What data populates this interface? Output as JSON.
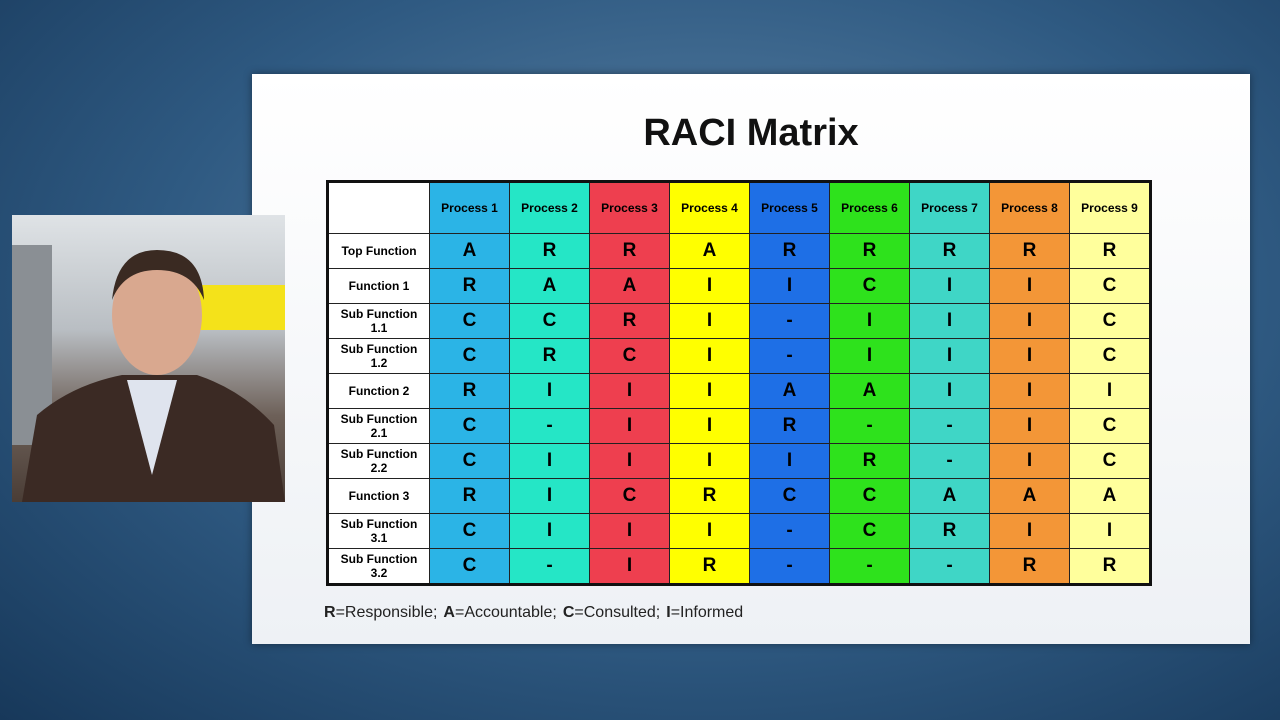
{
  "slide": {
    "title": "RACI Matrix",
    "table": {
      "columns": [
        "Process 1",
        "Process 2",
        "Process 3",
        "Process 4",
        "Process 5",
        "Process 6",
        "Process 7",
        "Process 8",
        "Process 9"
      ],
      "colors": [
        "#2bb4e6",
        "#25e6c6",
        "#ee3f4f",
        "#ffff00",
        "#1e6fe6",
        "#2ee21c",
        "#3fd6c6",
        "#f39637",
        "#ffff9c"
      ],
      "rows": [
        {
          "label": "Top Function",
          "cells": [
            "A",
            "R",
            "R",
            "A",
            "R",
            "R",
            "R",
            "R",
            "R"
          ]
        },
        {
          "label": "Function 1",
          "cells": [
            "R",
            "A",
            "A",
            "I",
            "I",
            "C",
            "I",
            "I",
            "C"
          ]
        },
        {
          "label": "Sub Function 1.1",
          "cells": [
            "C",
            "C",
            "R",
            "I",
            "-",
            "I",
            "I",
            "I",
            "C"
          ]
        },
        {
          "label": "Sub Function 1.2",
          "cells": [
            "C",
            "R",
            "C",
            "I",
            "-",
            "I",
            "I",
            "I",
            "C"
          ]
        },
        {
          "label": "Function 2",
          "cells": [
            "R",
            "I",
            "I",
            "I",
            "A",
            "A",
            "I",
            "I",
            "I"
          ]
        },
        {
          "label": "Sub Function 2.1",
          "cells": [
            "C",
            "-",
            "I",
            "I",
            "R",
            "-",
            "-",
            "I",
            "C"
          ]
        },
        {
          "label": "Sub Function 2.2",
          "cells": [
            "C",
            "I",
            "I",
            "I",
            "I",
            "R",
            "-",
            "I",
            "C"
          ]
        },
        {
          "label": "Function 3",
          "cells": [
            "R",
            "I",
            "C",
            "R",
            "C",
            "C",
            "A",
            "A",
            "A"
          ]
        },
        {
          "label": "Sub Function 3.1",
          "cells": [
            "C",
            "I",
            "I",
            "I",
            "-",
            "C",
            "R",
            "I",
            "I"
          ]
        },
        {
          "label": "Sub Function 3.2",
          "cells": [
            "C",
            "-",
            "I",
            "R",
            "-",
            "-",
            "-",
            "R",
            "R"
          ]
        }
      ]
    },
    "legend": [
      {
        "key": "R",
        "text": "=Responsible;"
      },
      {
        "key": "A",
        "text": "=Accountable;"
      },
      {
        "key": "C",
        "text": "=Consulted;"
      },
      {
        "key": "I",
        "text": "=Informed"
      }
    ]
  }
}
